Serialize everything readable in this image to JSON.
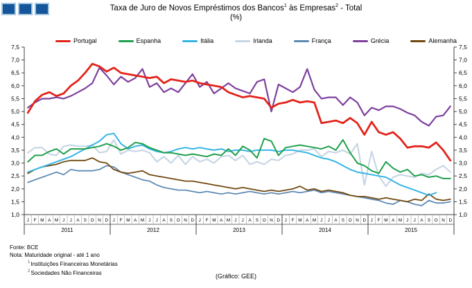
{
  "logo": {
    "square_count": 3,
    "fill": "#15569B",
    "border": "#A3C6E0"
  },
  "title": {
    "part1": "Taxa de Juro de Novos Empréstimos dos Bancos",
    "sup1": "1",
    "part2": " às Empresas",
    "sup2": "2",
    "part3": " - Total",
    "line2": "(%)"
  },
  "footnotes": {
    "fonte": "Fonte: BCE",
    "nota": "Nota: Maturidade original - até 1 ano",
    "items": [
      {
        "sup": "1",
        "text": "Instituições Financeiras Monetárias"
      },
      {
        "sup": "2",
        "text": "Sociedades Não Financeiras"
      }
    ]
  },
  "credit": "(Gráfico: GEE)",
  "chart_data": {
    "type": "line",
    "title": "Taxa de Juro de Novos Empréstimos dos Bancos às Empresas - Total (%)",
    "xlabel": "",
    "ylabel": "%",
    "ylim": [
      1.0,
      7.5
    ],
    "ytick_step": 0.5,
    "decimal_separator": ",",
    "grid": false,
    "legend_position": "top",
    "years": [
      2011,
      2012,
      2013,
      2014,
      2015
    ],
    "month_letters": [
      "J",
      "F",
      "M",
      "A",
      "M",
      "J",
      "J",
      "A",
      "S",
      "O",
      "N",
      "D"
    ],
    "axis_color": "#404040",
    "minor_sep_color": "#ABABAB",
    "series": [
      {
        "name": "Irlanda",
        "color": "#C8D6E4",
        "width": 2.2,
        "values": [
          3.4,
          3.6,
          3.6,
          3.35,
          3.3,
          3.65,
          3.7,
          3.65,
          3.65,
          3.7,
          3.4,
          3.45,
          3.9,
          3.35,
          3.5,
          3.45,
          3.5,
          3.4,
          3.05,
          3.25,
          3.0,
          3.3,
          2.95,
          3.25,
          3.05,
          3.15,
          3.0,
          3.25,
          3.3,
          3.1,
          3.3,
          2.95,
          3.05,
          2.95,
          3.15,
          3.1,
          3.3,
          3.35,
          3.5,
          3.5,
          3.55,
          3.25,
          3.45,
          3.4,
          3.5,
          3.35,
          3.75,
          2.15,
          3.45,
          2.5,
          2.1,
          2.45,
          2.55,
          2.5,
          2.45,
          2.6,
          2.55,
          2.75,
          2.9,
          2.65
        ]
      },
      {
        "name": "França",
        "color": "#5F8AB4",
        "width": 1.8,
        "values": [
          2.25,
          2.35,
          2.45,
          2.55,
          2.65,
          2.55,
          2.75,
          2.7,
          2.7,
          2.7,
          2.75,
          2.9,
          2.85,
          2.65,
          2.55,
          2.45,
          2.35,
          2.3,
          2.15,
          2.05,
          2.0,
          1.95,
          1.95,
          1.9,
          1.85,
          1.9,
          1.85,
          1.8,
          1.85,
          1.8,
          1.85,
          1.9,
          1.85,
          1.8,
          1.85,
          1.8,
          1.85,
          1.9,
          1.85,
          1.9,
          1.95,
          1.85,
          1.9,
          1.85,
          1.8,
          1.75,
          1.7,
          1.65,
          1.6,
          1.55,
          1.45,
          1.4,
          1.55,
          1.5,
          1.4,
          1.35,
          1.55,
          1.45,
          1.45,
          1.5
        ]
      },
      {
        "name": "Alemanha",
        "color": "#70480F",
        "width": 1.8,
        "values": [
          2.6,
          2.75,
          2.85,
          2.9,
          2.95,
          3.05,
          3.1,
          3.1,
          3.1,
          3.2,
          3.05,
          3.0,
          2.75,
          2.65,
          2.6,
          2.65,
          2.7,
          2.55,
          2.5,
          2.45,
          2.4,
          2.35,
          2.3,
          2.3,
          2.25,
          2.2,
          2.15,
          2.1,
          2.05,
          2.0,
          2.05,
          2.0,
          1.95,
          1.9,
          1.95,
          1.9,
          1.95,
          2.0,
          2.1,
          1.95,
          2.0,
          1.9,
          1.95,
          1.9,
          1.85,
          1.75,
          1.7,
          1.7,
          1.65,
          1.6,
          1.65,
          1.6,
          1.55,
          1.5,
          1.6,
          1.55,
          1.8,
          1.6,
          1.55,
          1.6
        ]
      },
      {
        "name": "Itália",
        "color": "#35B5E5",
        "width": 2.0,
        "values": [
          2.65,
          2.75,
          2.85,
          2.95,
          3.05,
          3.15,
          3.25,
          3.4,
          3.55,
          3.7,
          3.85,
          4.1,
          4.15,
          3.75,
          3.55,
          3.65,
          3.7,
          3.55,
          3.45,
          3.4,
          3.45,
          3.55,
          3.6,
          3.55,
          3.6,
          3.55,
          3.5,
          3.55,
          3.45,
          3.5,
          3.5,
          3.45,
          3.5,
          3.5,
          3.5,
          3.45,
          3.5,
          3.5,
          3.45,
          3.4,
          3.3,
          3.2,
          3.15,
          3.05,
          2.9,
          2.75,
          2.65,
          2.6,
          2.55,
          2.5,
          2.45,
          2.3,
          2.15,
          2.05,
          1.95,
          1.85,
          1.75,
          1.85,
          null,
          null
        ]
      },
      {
        "name": "Espanha",
        "color": "#1FA04C",
        "width": 2.0,
        "values": [
          3.05,
          3.3,
          3.3,
          3.45,
          3.55,
          3.35,
          3.55,
          3.55,
          3.55,
          3.6,
          3.65,
          3.75,
          3.65,
          3.5,
          3.6,
          3.8,
          3.75,
          3.6,
          3.5,
          3.4,
          3.4,
          3.35,
          3.3,
          3.35,
          3.3,
          3.25,
          3.35,
          3.3,
          3.55,
          3.3,
          3.65,
          3.5,
          3.2,
          3.95,
          3.85,
          3.3,
          3.6,
          3.65,
          3.7,
          3.65,
          3.6,
          3.55,
          3.65,
          3.5,
          3.9,
          3.4,
          3.0,
          2.9,
          2.7,
          2.6,
          3.05,
          2.8,
          2.65,
          2.75,
          2.5,
          2.55,
          2.45,
          2.5,
          2.4,
          2.4
        ]
      },
      {
        "name": "Grécia",
        "color": "#7E3F9D",
        "width": 2.2,
        "values": [
          5.15,
          5.35,
          5.5,
          5.5,
          5.55,
          5.5,
          5.6,
          5.75,
          5.9,
          6.1,
          6.7,
          6.4,
          6.05,
          6.35,
          6.15,
          6.3,
          6.65,
          5.95,
          6.1,
          5.75,
          5.9,
          5.75,
          6.1,
          6.45,
          5.95,
          6.15,
          5.7,
          5.9,
          6.1,
          5.9,
          5.8,
          5.7,
          6.15,
          6.25,
          5.0,
          6.05,
          5.9,
          5.75,
          5.95,
          6.65,
          5.85,
          5.5,
          5.55,
          5.55,
          5.25,
          5.55,
          5.35,
          4.85,
          5.15,
          5.05,
          5.2,
          5.2,
          5.1,
          4.95,
          4.85,
          4.6,
          4.45,
          4.8,
          4.85,
          5.2
        ]
      },
      {
        "name": "Portugal",
        "color": "#E2231A",
        "width": 2.8,
        "values": [
          4.95,
          5.4,
          5.65,
          5.75,
          5.6,
          5.7,
          6.0,
          6.2,
          6.5,
          6.85,
          6.75,
          6.55,
          6.7,
          6.5,
          6.45,
          6.4,
          6.35,
          6.3,
          6.35,
          6.1,
          6.25,
          6.2,
          6.15,
          6.2,
          6.1,
          6.05,
          6.0,
          5.95,
          5.75,
          5.65,
          5.55,
          5.6,
          5.55,
          5.5,
          5.15,
          5.3,
          5.35,
          5.45,
          5.35,
          5.4,
          5.35,
          4.55,
          4.6,
          4.65,
          4.55,
          4.75,
          4.55,
          4.1,
          4.6,
          4.2,
          4.1,
          4.2,
          3.95,
          3.6,
          3.65,
          3.65,
          3.6,
          3.8,
          3.5,
          3.1
        ]
      }
    ],
    "legend_order": [
      "Portugal",
      "Espanha",
      "Itália",
      "Irlanda",
      "França",
      "Grécia",
      "Alemanha"
    ]
  }
}
